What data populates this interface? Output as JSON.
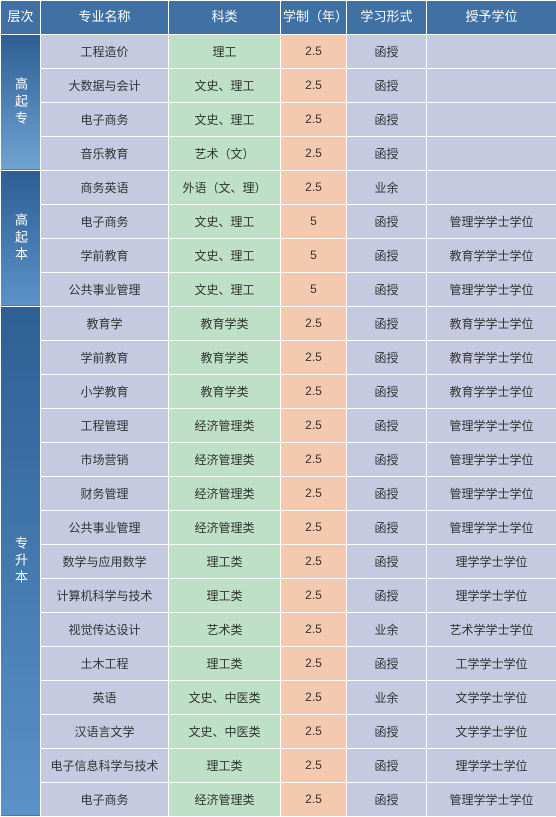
{
  "headers": {
    "level": "层次",
    "major": "专业名称",
    "subject": "科类",
    "duration": "学制（年）",
    "mode": "学习形式",
    "degree": "授予学位"
  },
  "colors": {
    "header_bg": "#3f71a4",
    "major_bg": "#c5cae0",
    "subject_bg": "#bde0c6",
    "duration_bg": "#f3c9b0",
    "mode_bg": "#c5cae0",
    "degree_bg": "#c5cae0",
    "level_grad_start": "#2d5f93",
    "level_grad_end": "#6fa4d3",
    "text_white": "#ffffff",
    "text_dark": "#333333",
    "border": "#ffffff"
  },
  "colWidths": {
    "level": 40,
    "major": 128,
    "subject": 112,
    "duration": 66,
    "mode": 80,
    "degree": 130
  },
  "groups": [
    {
      "level": "高起专",
      "rows": [
        {
          "major": "工程造价",
          "subject": "理工",
          "duration": "2.5",
          "mode": "函授",
          "degree": ""
        },
        {
          "major": "大数据与会计",
          "subject": "文史、理工",
          "duration": "2.5",
          "mode": "函授",
          "degree": ""
        },
        {
          "major": "电子商务",
          "subject": "文史、理工",
          "duration": "2.5",
          "mode": "函授",
          "degree": ""
        },
        {
          "major": "音乐教育",
          "subject": "艺术（文）",
          "duration": "2.5",
          "mode": "函授",
          "degree": ""
        }
      ]
    },
    {
      "level": "高起本",
      "rows": [
        {
          "major": "商务英语",
          "subject": "外语（文、理）",
          "duration": "2.5",
          "mode": "业余",
          "degree": ""
        },
        {
          "major": "电子商务",
          "subject": "文史、理工",
          "duration": "5",
          "mode": "函授",
          "degree": "管理学学士学位"
        },
        {
          "major": "学前教育",
          "subject": "文史、理工",
          "duration": "5",
          "mode": "函授",
          "degree": "教育学学士学位"
        },
        {
          "major": "公共事业管理",
          "subject": "文史、理工",
          "duration": "5",
          "mode": "函授",
          "degree": "管理学学士学位"
        }
      ]
    },
    {
      "level": "专升本",
      "rows": [
        {
          "major": "教育学",
          "subject": "教育学类",
          "duration": "2.5",
          "mode": "函授",
          "degree": "教育学学士学位"
        },
        {
          "major": "学前教育",
          "subject": "教育学类",
          "duration": "2.5",
          "mode": "函授",
          "degree": "教育学学士学位"
        },
        {
          "major": "小学教育",
          "subject": "教育学类",
          "duration": "2.5",
          "mode": "函授",
          "degree": "教育学学士学位"
        },
        {
          "major": "工程管理",
          "subject": "经济管理类",
          "duration": "2.5",
          "mode": "函授",
          "degree": "管理学学士学位"
        },
        {
          "major": "市场营销",
          "subject": "经济管理类",
          "duration": "2.5",
          "mode": "函授",
          "degree": "管理学学士学位"
        },
        {
          "major": "财务管理",
          "subject": "经济管理类",
          "duration": "2.5",
          "mode": "函授",
          "degree": "管理学学士学位"
        },
        {
          "major": "公共事业管理",
          "subject": "经济管理类",
          "duration": "2.5",
          "mode": "函授",
          "degree": "管理学学士学位"
        },
        {
          "major": "数学与应用数学",
          "subject": "理工类",
          "duration": "2.5",
          "mode": "函授",
          "degree": "理学学士学位"
        },
        {
          "major": "计算机科学与技术",
          "subject": "理工类",
          "duration": "2.5",
          "mode": "函授",
          "degree": "理学学士学位"
        },
        {
          "major": "视觉传达设计",
          "subject": "艺术类",
          "duration": "2.5",
          "mode": "业余",
          "degree": "艺术学学士学位"
        },
        {
          "major": "土木工程",
          "subject": "理工类",
          "duration": "2.5",
          "mode": "函授",
          "degree": "工学学士学位"
        },
        {
          "major": "英语",
          "subject": "文史、中医类",
          "duration": "2.5",
          "mode": "业余",
          "degree": "文学学士学位"
        },
        {
          "major": "汉语言文学",
          "subject": "文史、中医类",
          "duration": "2.5",
          "mode": "函授",
          "degree": "文学学士学位"
        },
        {
          "major": "电子信息科学与技术",
          "subject": "理工类",
          "duration": "2.5",
          "mode": "函授",
          "degree": "理学学士学位"
        },
        {
          "major": "电子商务",
          "subject": "经济管理类",
          "duration": "2.5",
          "mode": "函授",
          "degree": "管理学学士学位"
        }
      ]
    }
  ]
}
